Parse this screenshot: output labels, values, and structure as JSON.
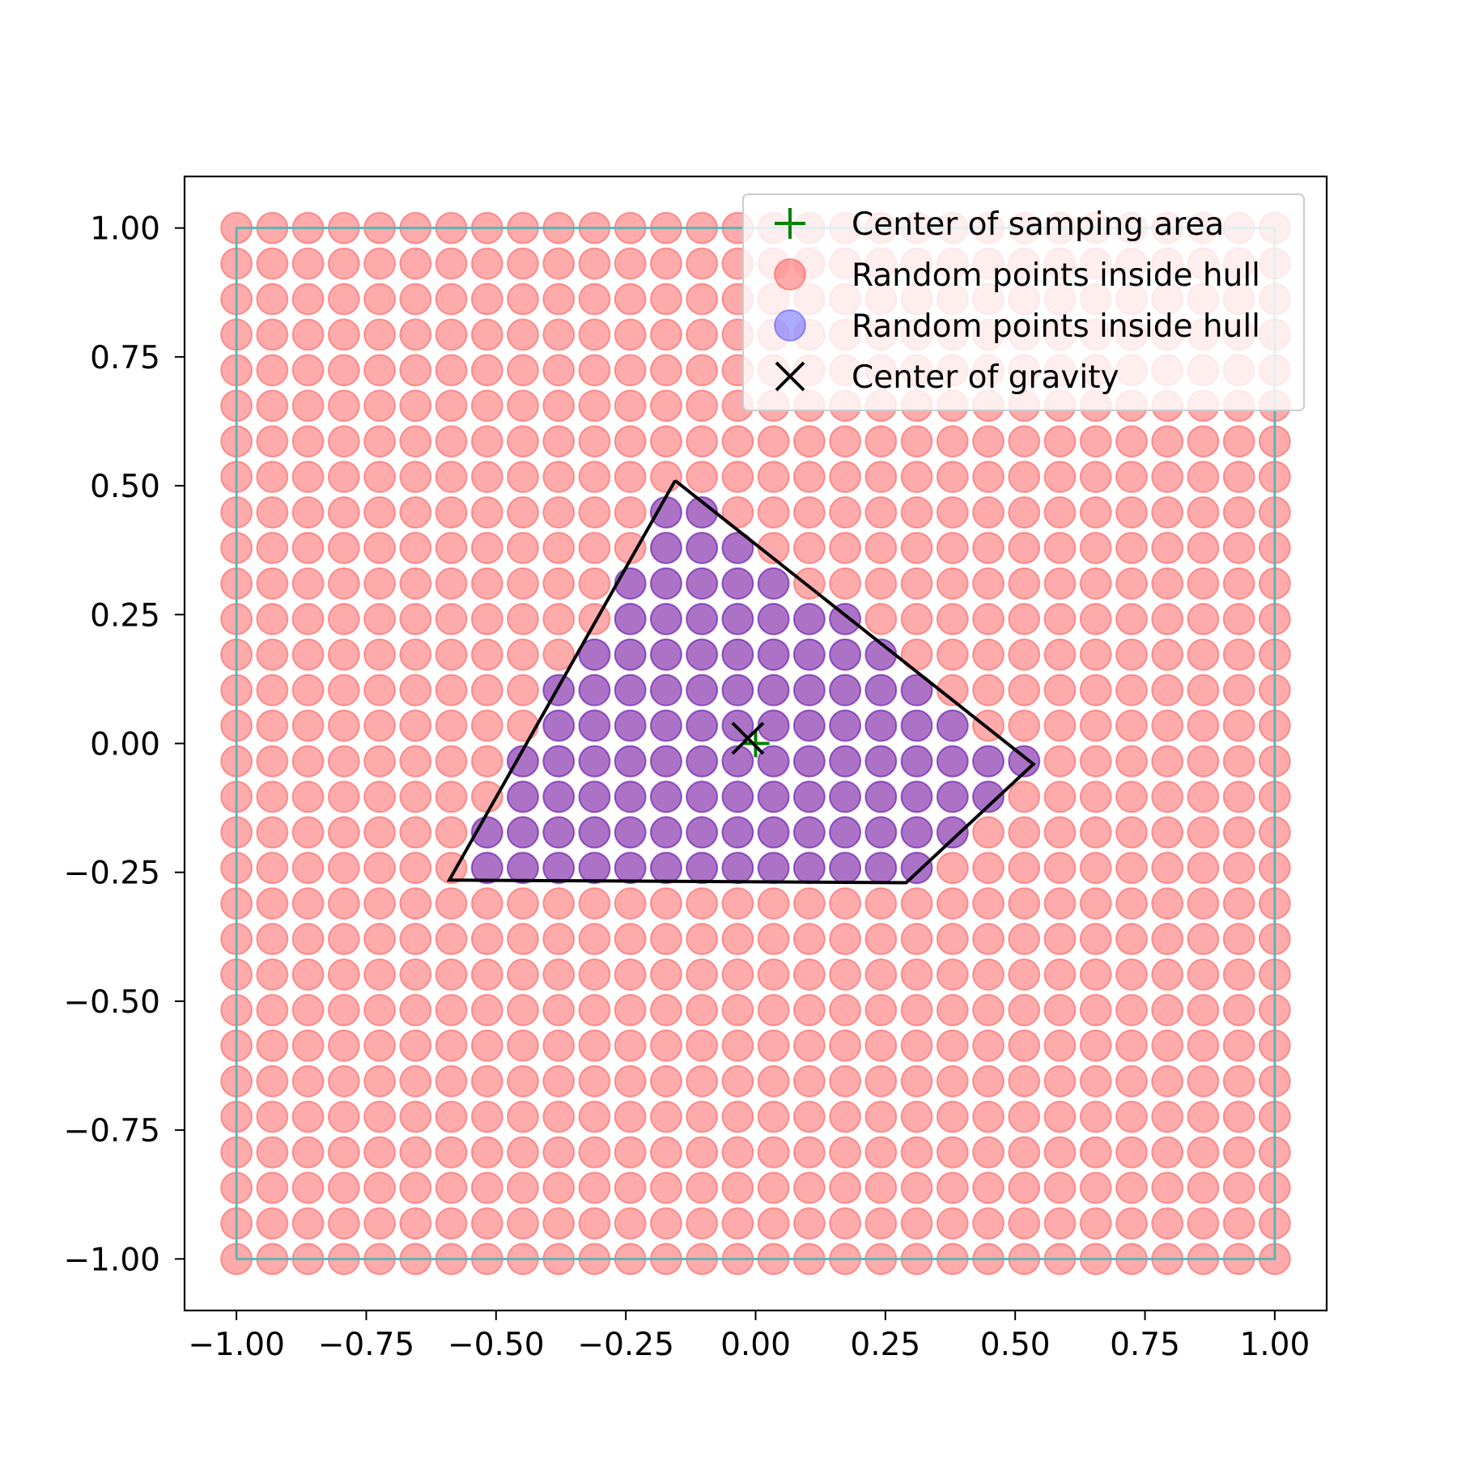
{
  "chart_data": {
    "type": "scatter",
    "title": "",
    "xlabel": "",
    "ylabel": "",
    "xlim": [
      -1.1,
      1.1
    ],
    "ylim": [
      -1.1,
      1.1
    ],
    "grid": false,
    "legend_position": "top-right",
    "x_ticks": [
      {
        "value": -1.0,
        "label": "−1.00"
      },
      {
        "value": -0.75,
        "label": "−0.75"
      },
      {
        "value": -0.5,
        "label": "−0.50"
      },
      {
        "value": -0.25,
        "label": "−0.25"
      },
      {
        "value": 0.0,
        "label": "0.00"
      },
      {
        "value": 0.25,
        "label": "0.25"
      },
      {
        "value": 0.5,
        "label": "0.50"
      },
      {
        "value": 0.75,
        "label": "0.75"
      },
      {
        "value": 1.0,
        "label": "1.00"
      }
    ],
    "y_ticks": [
      {
        "value": 1.0,
        "label": "1.00"
      },
      {
        "value": 0.75,
        "label": "0.75"
      },
      {
        "value": 0.5,
        "label": "0.50"
      },
      {
        "value": 0.25,
        "label": "0.25"
      },
      {
        "value": 0.0,
        "label": "0.00"
      },
      {
        "value": -0.25,
        "label": "−0.25"
      },
      {
        "value": -0.5,
        "label": "−0.50"
      },
      {
        "value": -0.75,
        "label": "−0.75"
      },
      {
        "value": -1.0,
        "label": "−1.00"
      }
    ],
    "sampling_grid": {
      "x_min": -1.0,
      "x_max": 1.0,
      "y_min": -1.0,
      "y_max": 1.0,
      "count_per_axis": 30
    },
    "sampling_area_boundary": {
      "x": [
        -1.0,
        1.0,
        1.0,
        -1.0,
        -1.0
      ],
      "y": [
        -1.0,
        -1.0,
        1.0,
        1.0,
        -1.0
      ],
      "color": "#5fb3b3"
    },
    "hull": {
      "x": [
        -0.155,
        0.535,
        0.29,
        -0.59,
        -0.155
      ],
      "y": [
        0.51,
        -0.04,
        -0.27,
        -0.265,
        0.51
      ],
      "color": "#000000"
    },
    "series": [
      {
        "name": "Center of samping area",
        "marker": "plus",
        "color": "#008000",
        "points": [
          [
            0.0,
            0.0
          ]
        ]
      },
      {
        "name": "Random points inside hull",
        "marker": "circle",
        "color": "#ff0000",
        "alpha": 0.33,
        "points": "sampling_grid"
      },
      {
        "name": "Random points inside hull",
        "marker": "circle",
        "color": "#0000ff",
        "alpha": 0.33,
        "points": "inside_hull"
      },
      {
        "name": "Center of gravity",
        "marker": "x",
        "color": "#000000",
        "points": [
          [
            -0.015,
            0.01
          ]
        ]
      }
    ]
  }
}
